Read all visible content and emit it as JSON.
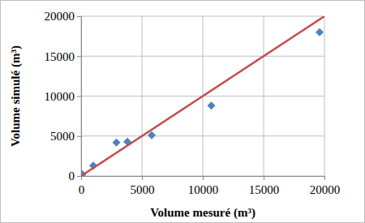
{
  "chart_data": {
    "type": "scatter",
    "x_label": "Volume mesuré (m³)",
    "y_label": "Volume simulé (m³)",
    "series": [
      {
        "type": "scatter",
        "marker": "diamond",
        "color": "#4f81bd",
        "x": [
          100,
          1000,
          2900,
          3800,
          5800,
          10700,
          19600
        ],
        "values": [
          200,
          1300,
          4200,
          4300,
          5100,
          8800,
          18000
        ]
      },
      {
        "type": "line",
        "line_style": "solid",
        "color": "#c0504d",
        "x": [
          0,
          20000
        ],
        "values": [
          0,
          20000
        ]
      }
    ],
    "xlim": [
      0,
      20000
    ],
    "xticks": [
      0,
      5000,
      10000,
      15000,
      20000
    ],
    "ylim": [
      0,
      20000
    ],
    "yticks": [
      0,
      5000,
      10000,
      15000,
      20000
    ],
    "grid": true
  }
}
